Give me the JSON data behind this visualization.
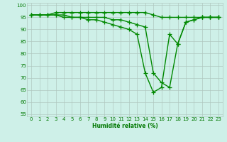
{
  "xlabel": "Humidité relative (%)",
  "xlim": [
    -0.5,
    23.5
  ],
  "ylim": [
    54,
    101
  ],
  "yticks": [
    55,
    60,
    65,
    70,
    75,
    80,
    85,
    90,
    95,
    100
  ],
  "xticks": [
    0,
    1,
    2,
    3,
    4,
    5,
    6,
    7,
    8,
    9,
    10,
    11,
    12,
    13,
    14,
    15,
    16,
    17,
    18,
    19,
    20,
    21,
    22,
    23
  ],
  "background_color": "#cef0e8",
  "grid_color": "#b0c8c0",
  "line_color": "#008800",
  "line_width": 1.0,
  "marker": "+",
  "marker_size": 4,
  "series": [
    [
      96,
      96,
      96,
      97,
      97,
      97,
      97,
      97,
      97,
      97,
      97,
      97,
      97,
      97,
      97,
      96,
      95,
      95,
      95,
      95,
      95,
      95,
      95,
      95
    ],
    [
      96,
      96,
      96,
      96,
      96,
      95,
      95,
      95,
      95,
      95,
      94,
      94,
      93,
      92,
      91,
      72,
      68,
      66,
      84,
      93,
      94,
      95,
      95,
      95
    ],
    [
      96,
      96,
      96,
      96,
      95,
      95,
      95,
      94,
      94,
      93,
      92,
      91,
      90,
      88,
      72,
      64,
      66,
      88,
      84,
      93,
      94,
      95,
      95,
      95
    ]
  ]
}
